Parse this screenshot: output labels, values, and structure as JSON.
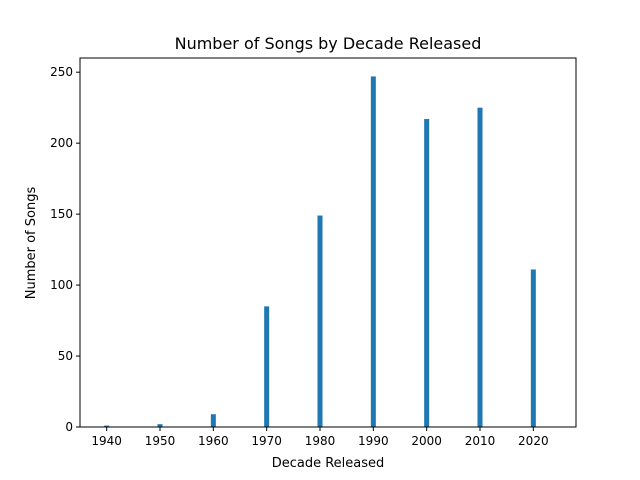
{
  "chart_data": {
    "type": "bar",
    "title": "Number of Songs by Decade Released",
    "xlabel": "Decade Released",
    "ylabel": "Number of Songs",
    "x": [
      1940,
      1950,
      1960,
      1970,
      1980,
      1990,
      2000,
      2010,
      2020
    ],
    "values": [
      1,
      2,
      9,
      85,
      149,
      247,
      217,
      225,
      111
    ],
    "xlim": [
      1935,
      2028
    ],
    "ylim": [
      0,
      260
    ],
    "xticks": [
      "1940",
      "1950",
      "1960",
      "1970",
      "1980",
      "1990",
      "2000",
      "2010",
      "2020"
    ],
    "yticks": [
      "0",
      "50",
      "100",
      "150",
      "200",
      "250"
    ],
    "bar_color": "#1f77b4",
    "grid": false,
    "legend": "none"
  }
}
